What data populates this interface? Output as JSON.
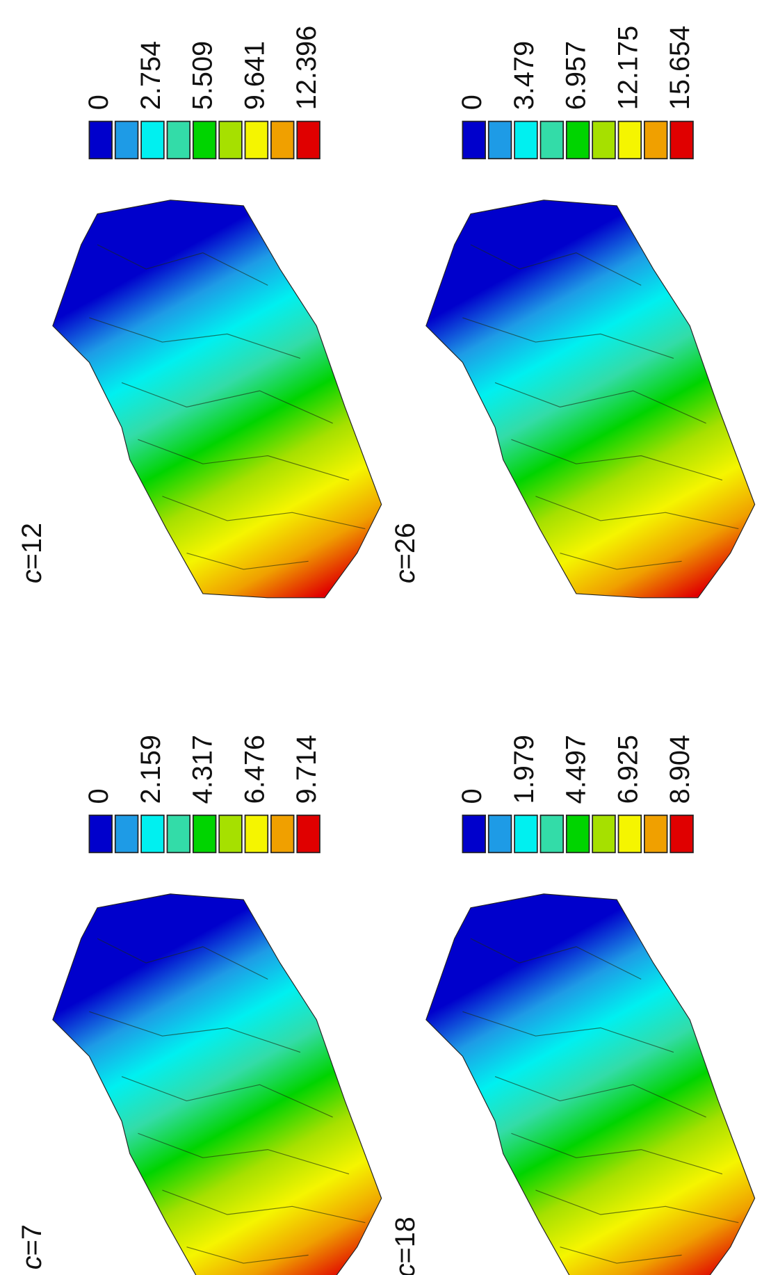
{
  "panels": [
    {
      "symbol": "c",
      "value": "=7",
      "legend": {
        "colors": [
          "#0000cc",
          "#1e9be6",
          "#00f0f0",
          "#33dca8",
          "#00d400",
          "#a6e000",
          "#f5f500",
          "#f0a000",
          "#e00000"
        ],
        "labels": [
          "0",
          "2.159",
          "4.317",
          "6.476",
          "9.714"
        ]
      }
    },
    {
      "symbol": "c",
      "value": "=12",
      "legend": {
        "colors": [
          "#0000cc",
          "#1e9be6",
          "#00f0f0",
          "#33dca8",
          "#00d400",
          "#a6e000",
          "#f5f500",
          "#f0a000",
          "#e00000"
        ],
        "labels": [
          "0",
          "2.754",
          "5.509",
          "9.641",
          "12.396"
        ]
      }
    },
    {
      "symbol": "c",
      "value": "=18",
      "legend": {
        "colors": [
          "#0000cc",
          "#1e9be6",
          "#00f0f0",
          "#33dca8",
          "#00d400",
          "#a6e000",
          "#f5f500",
          "#f0a000",
          "#e00000"
        ],
        "labels": [
          "0",
          "1.979",
          "4.497",
          "6.925",
          "8.904"
        ]
      }
    },
    {
      "symbol": "c",
      "value": "=26",
      "legend": {
        "colors": [
          "#0000cc",
          "#1e9be6",
          "#00f0f0",
          "#33dca8",
          "#00d400",
          "#a6e000",
          "#f5f500",
          "#f0a000",
          "#e00000"
        ],
        "labels": [
          "0",
          "3.479",
          "6.957",
          "12.175",
          "15.654"
        ]
      }
    }
  ]
}
